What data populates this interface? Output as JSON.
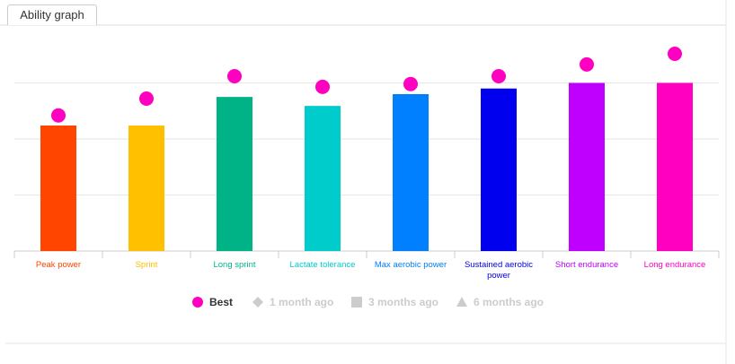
{
  "tab": "Ability graph",
  "chart_data": {
    "type": "bar",
    "categories": [
      "Peak power",
      "Sprint",
      "Long sprint",
      "Lactate tolerance",
      "Max aerobic power",
      "Sustained aerobic power",
      "Short endurance",
      "Long endurance"
    ],
    "values": [
      2.24,
      2.24,
      2.75,
      2.59,
      2.8,
      2.9,
      3.0,
      3.0
    ],
    "colors": [
      "#ff4500",
      "#ffc000",
      "#00b386",
      "#00cccc",
      "#0080ff",
      "#0000ee",
      "#bf00ff",
      "#ff00c0"
    ],
    "series": [
      {
        "name": "Best",
        "color": "#ff00c0",
        "values": [
          2.42,
          2.72,
          3.12,
          2.93,
          2.98,
          3.12,
          3.33,
          3.52
        ]
      }
    ],
    "inactive_series": [
      "1 month ago",
      "3 months ago",
      "6 months ago"
    ],
    "ylim": [
      0,
      4
    ],
    "yticks": [
      0,
      1,
      2,
      3
    ],
    "grid": true
  }
}
